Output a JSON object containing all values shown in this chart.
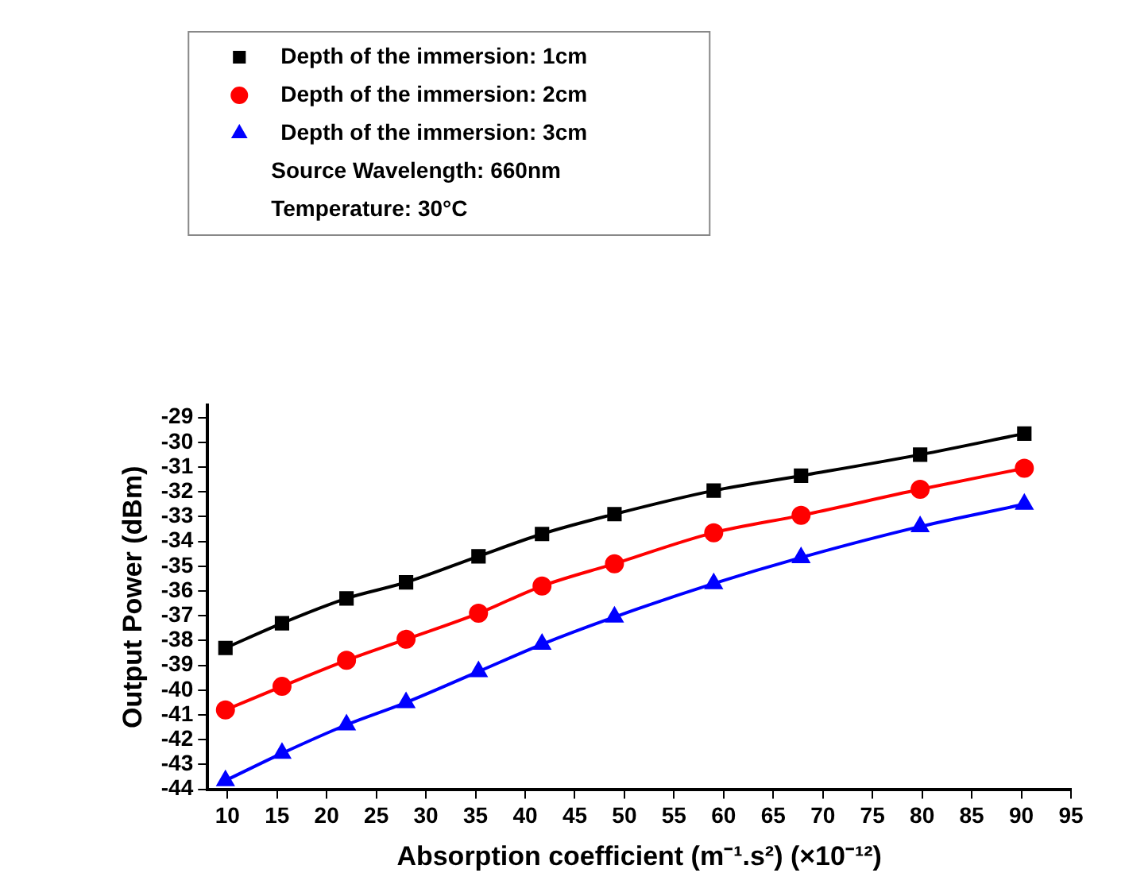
{
  "chart_data": {
    "type": "line",
    "xlabel": "Absorption coefficient (m⁻¹.s²) (×10⁻¹²)",
    "ylabel": "Output Power (dBm)",
    "x": [
      9.8,
      15.5,
      22,
      28,
      35.3,
      41.7,
      49,
      59,
      67.8,
      79.8,
      90.3
    ],
    "series": [
      {
        "name": "Depth of the immersion: 1cm",
        "color": "#000000",
        "marker": "square",
        "values": [
          -38.3,
          -37.3,
          -36.3,
          -35.65,
          -34.6,
          -33.7,
          -32.9,
          -31.95,
          -31.35,
          -30.5,
          -29.65
        ]
      },
      {
        "name": "Depth of the immersion: 2cm",
        "color": "#ff0000",
        "marker": "circle",
        "values": [
          -40.8,
          -39.85,
          -38.8,
          -37.95,
          -36.9,
          -35.8,
          -34.9,
          -33.65,
          -32.95,
          -31.9,
          -31.05
        ]
      },
      {
        "name": "Depth of the immersion: 3cm",
        "color": "#0000ff",
        "marker": "triangle",
        "values": [
          -43.65,
          -42.55,
          -41.4,
          -40.5,
          -39.25,
          -38.15,
          -37.05,
          -35.7,
          -34.65,
          -33.4,
          -32.5
        ]
      }
    ],
    "annotations": [
      "Source Wavelength: 660nm",
      "Temperature: 30°C"
    ],
    "xlim": [
      8,
      95
    ],
    "xticks": [
      10,
      15,
      20,
      25,
      30,
      35,
      40,
      45,
      50,
      55,
      60,
      65,
      70,
      75,
      80,
      85,
      90,
      95
    ],
    "ylim": [
      -44,
      -28.5
    ],
    "yticks": [
      -44,
      -43,
      -42,
      -41,
      -40,
      -39,
      -38,
      -37,
      -36,
      -35,
      -34,
      -33,
      -32,
      -31,
      -30,
      -29
    ],
    "grid": false,
    "legend": "top left",
    "line_style": "solid"
  }
}
